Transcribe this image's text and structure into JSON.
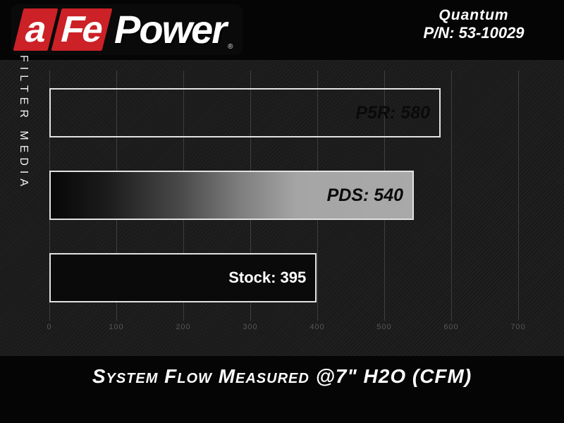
{
  "header": {
    "logo": {
      "block1": "a",
      "block2": "Fe",
      "word": "Power",
      "reg": "®",
      "brand_red": "#cb2127"
    },
    "product": {
      "line1": "Quantum",
      "line2": "P/N: 53-10029"
    }
  },
  "chart_data": {
    "type": "bar",
    "orientation": "horizontal",
    "title": "System Flow Measured @7\" H2O (CFM)",
    "xlabel": "",
    "ylabel": "FILTER MEDIA",
    "categories": [
      "P5R",
      "PDS",
      "Stock"
    ],
    "values": [
      580,
      540,
      395
    ],
    "bar_labels": [
      "P5R: 580",
      "PDS: 540",
      "Stock: 395"
    ],
    "bar_styles": [
      "blue-gradient",
      "gray-gradient",
      "solid-black"
    ],
    "bar_label_colors": [
      "#0a0a0a",
      "#0a0a0a",
      "#ffffff"
    ],
    "x_ticks": [
      0,
      100,
      200,
      300,
      400,
      500,
      600,
      700
    ],
    "xlim": [
      0,
      770
    ],
    "grid": true,
    "legend": false,
    "colors": {
      "bar_blue": "#4a74b8",
      "bar_gray": "#a7a7a7",
      "bar_black": "#0a0a0a",
      "grid_line": "#3e3e3e",
      "tick_label": "#565656",
      "plot_background": "#1c1c1c",
      "page_background": "#050505"
    }
  }
}
